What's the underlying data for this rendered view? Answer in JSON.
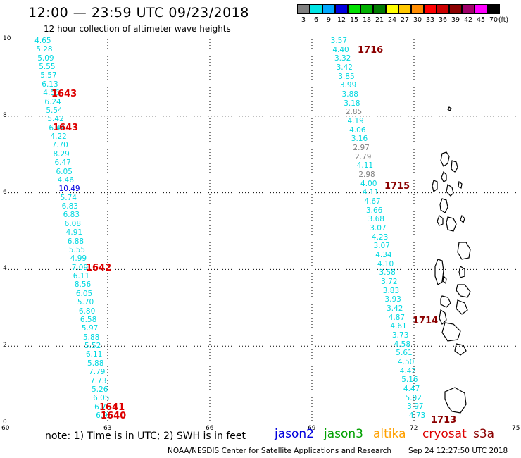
{
  "header": {
    "title": "12:00 — 23:59 UTC 09/23/2018",
    "subtitle": "12 hour collection of altimeter wave heights"
  },
  "color_scale": {
    "unit": "(ft)",
    "bins": [
      {
        "label": "3",
        "color": "#808080"
      },
      {
        "label": "6",
        "color": "#00e5e5"
      },
      {
        "label": "9",
        "color": "#00a8ff"
      },
      {
        "label": "12",
        "color": "#0000e0"
      },
      {
        "label": "15",
        "color": "#00e000"
      },
      {
        "label": "18",
        "color": "#00b000"
      },
      {
        "label": "21",
        "color": "#007a00"
      },
      {
        "label": "24",
        "color": "#ffff00"
      },
      {
        "label": "27",
        "color": "#ffc800"
      },
      {
        "label": "30",
        "color": "#ff8c00"
      },
      {
        "label": "33",
        "color": "#ff0000"
      },
      {
        "label": "36",
        "color": "#cc0000"
      },
      {
        "label": "39",
        "color": "#8b0000"
      },
      {
        "label": "42",
        "color": "#a0006a"
      },
      {
        "label": "45",
        "color": "#ff00ff"
      },
      {
        "label": "70",
        "color": "#000000"
      }
    ]
  },
  "map": {
    "lon_min": 60,
    "lon_max": 75,
    "lat_min": 0,
    "lat_max": 10,
    "x_ticks": [
      "60",
      "63",
      "66",
      "69",
      "72",
      "75"
    ],
    "y_ticks": [
      "0",
      "2",
      "4",
      "6",
      "8",
      "10"
    ]
  },
  "tracks": [
    {
      "name": "west",
      "lon_top": 61.1,
      "lon_bottom": 62.9,
      "color": "#00d8e0",
      "values": [
        "4.65",
        "5.28",
        "5.09",
        "5.55",
        "5.57",
        "6.13",
        "4.56",
        "6.24",
        "5.54",
        "5.42",
        "6.44",
        "4.22",
        "7.70",
        "8.29",
        "6.47",
        "6.05",
        "4.46",
        "10.49",
        "5.74",
        "6.83",
        "6.83",
        "6.08",
        "4.91",
        "6.88",
        "5.55",
        "4.99",
        "7.09",
        "6.11",
        "8.56",
        "6.05",
        "5.70",
        "6.80",
        "6.58",
        "5.97",
        "5.88",
        "5.52",
        "6.11",
        "5.88",
        "7.79",
        "7.73",
        "5.26",
        "6.05",
        "6.76",
        "6.95"
      ],
      "value_colors": {
        "17": "#0000e0"
      }
    },
    {
      "name": "east",
      "lon_top": 69.8,
      "lon_bottom": 72.1,
      "color": "#00d8e0",
      "values": [
        "3.57",
        "4.40",
        "3.32",
        "3.42",
        "3.85",
        "3.99",
        "3.88",
        "3.18",
        "2.85",
        "4.19",
        "4.06",
        "3.16",
        "2.97",
        "2.79",
        "4.11",
        "2.98",
        "4.00",
        "4.11",
        "4.67",
        "3.66",
        "3.68",
        "3.07",
        "4.23",
        "3.07",
        "4.34",
        "4.10",
        "3.58",
        "3.72",
        "3.83",
        "3.93",
        "3.42",
        "4.87",
        "4.61",
        "3.73",
        "4.58",
        "5.61",
        "4.50",
        "4.42",
        "5.16",
        "4.47",
        "5.02",
        "3.97",
        "4.73"
      ],
      "value_colors": {
        "8": "#808080",
        "12": "#808080",
        "13": "#808080",
        "15": "#808080"
      }
    }
  ],
  "time_stamps": [
    {
      "text": "1643",
      "color": "#dd0000"
    },
    {
      "text": "1643",
      "color": "#dd0000"
    },
    {
      "text": "1642",
      "color": "#dd0000"
    },
    {
      "text": "1641",
      "color": "#dd0000"
    },
    {
      "text": "1640",
      "color": "#dd0000"
    },
    {
      "text": "1716",
      "color": "#8b0000"
    },
    {
      "text": "1715",
      "color": "#8b0000"
    },
    {
      "text": "1714",
      "color": "#8b0000"
    },
    {
      "text": "1713",
      "color": "#8b0000"
    }
  ],
  "footer": {
    "note": "note:  1) Time is in UTC;  2) SWH is in feet",
    "satellites": [
      {
        "name": "jason2",
        "color": "#0000dd"
      },
      {
        "name": "jason3",
        "color": "#00a000"
      },
      {
        "name": "altika",
        "color": "#ffa000"
      },
      {
        "name": "cryosat",
        "color": "#dd0000"
      },
      {
        "name": "s3a",
        "color": "#8b0000"
      }
    ],
    "credit": "NOAA/NESDIS Center for Satellite Applications and Research",
    "timestamp": "Sep 24 12:27:50 UTC 2018"
  }
}
